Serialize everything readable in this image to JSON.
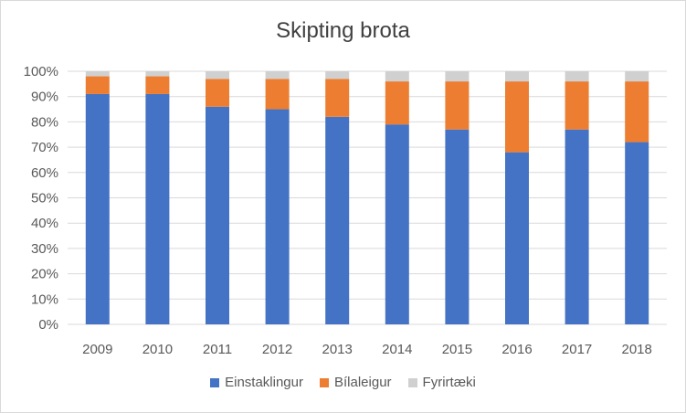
{
  "chart_data": {
    "type": "bar",
    "stacked": true,
    "title": "Skipting brota",
    "categories": [
      "2009",
      "2010",
      "2011",
      "2012",
      "2013",
      "2014",
      "2015",
      "2016",
      "2017",
      "2018"
    ],
    "series": [
      {
        "name": "Einstaklingur",
        "color": "#4472c4",
        "values": [
          91,
          91,
          86,
          85,
          82,
          79,
          77,
          68,
          77,
          72
        ]
      },
      {
        "name": "Bílaleigur",
        "color": "#ed7d31",
        "values": [
          7,
          7,
          11,
          12,
          15,
          17,
          19,
          28,
          19,
          24
        ]
      },
      {
        "name": "Fyrirtæki",
        "color": "#d0d0d0",
        "values": [
          2,
          2,
          3,
          3,
          3,
          4,
          4,
          4,
          4,
          4
        ]
      }
    ],
    "yticks": [
      "0%",
      "10%",
      "20%",
      "30%",
      "40%",
      "50%",
      "60%",
      "70%",
      "80%",
      "90%",
      "100%"
    ],
    "ylim": [
      0,
      100
    ],
    "grid": true,
    "legend_position": "bottom"
  }
}
